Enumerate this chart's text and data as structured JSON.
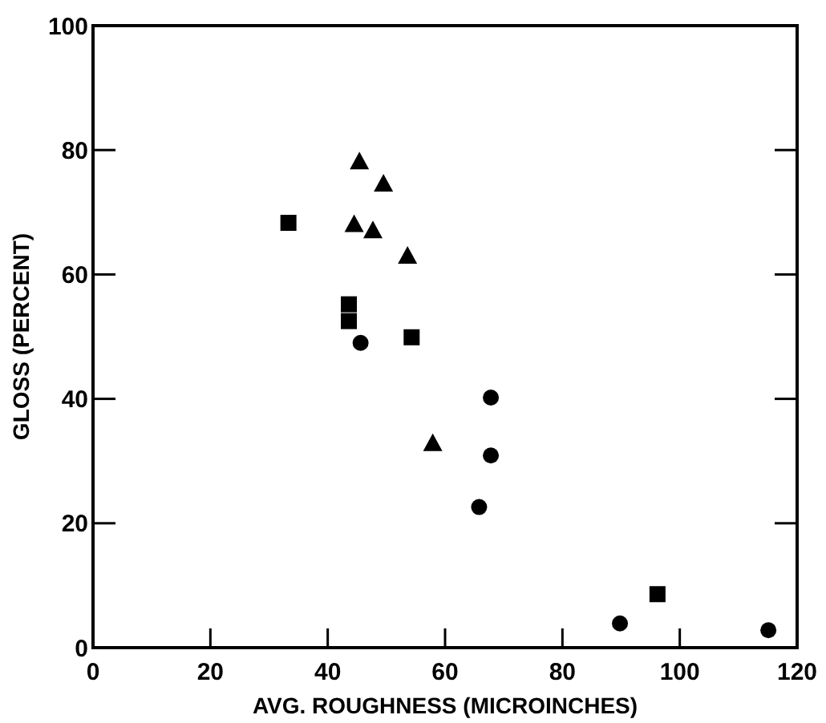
{
  "chart_data": {
    "type": "scatter",
    "xlabel": "AVG. ROUGHNESS (MICROINCHES)",
    "ylabel": "GLOSS (PERCENT)",
    "xlim": [
      0,
      120
    ],
    "ylim": [
      0,
      100
    ],
    "xticks": [
      0,
      20,
      40,
      60,
      80,
      100,
      120
    ],
    "yticks": [
      0,
      20,
      40,
      60,
      80,
      100
    ],
    "grid": false,
    "series": [
      {
        "color": "#000000",
        "marker": "square",
        "x": [
          33.3,
          43.6,
          43.6,
          54.3,
          96.2
        ],
        "values": [
          68.3,
          55.2,
          52.5,
          49.9,
          8.6
        ]
      },
      {
        "color": "#000000",
        "marker": "triangle",
        "x": [
          45.4,
          49.5,
          44.5,
          47.7,
          53.6,
          57.9
        ],
        "values": [
          78.2,
          74.6,
          68.1,
          67.1,
          63,
          32.9
        ]
      },
      {
        "color": "#000000",
        "marker": "circle",
        "x": [
          45.6,
          67.8,
          67.8,
          65.8,
          89.8,
          115.1
        ],
        "values": [
          49,
          40.2,
          30.9,
          22.6,
          3.9,
          2.8
        ]
      }
    ]
  }
}
